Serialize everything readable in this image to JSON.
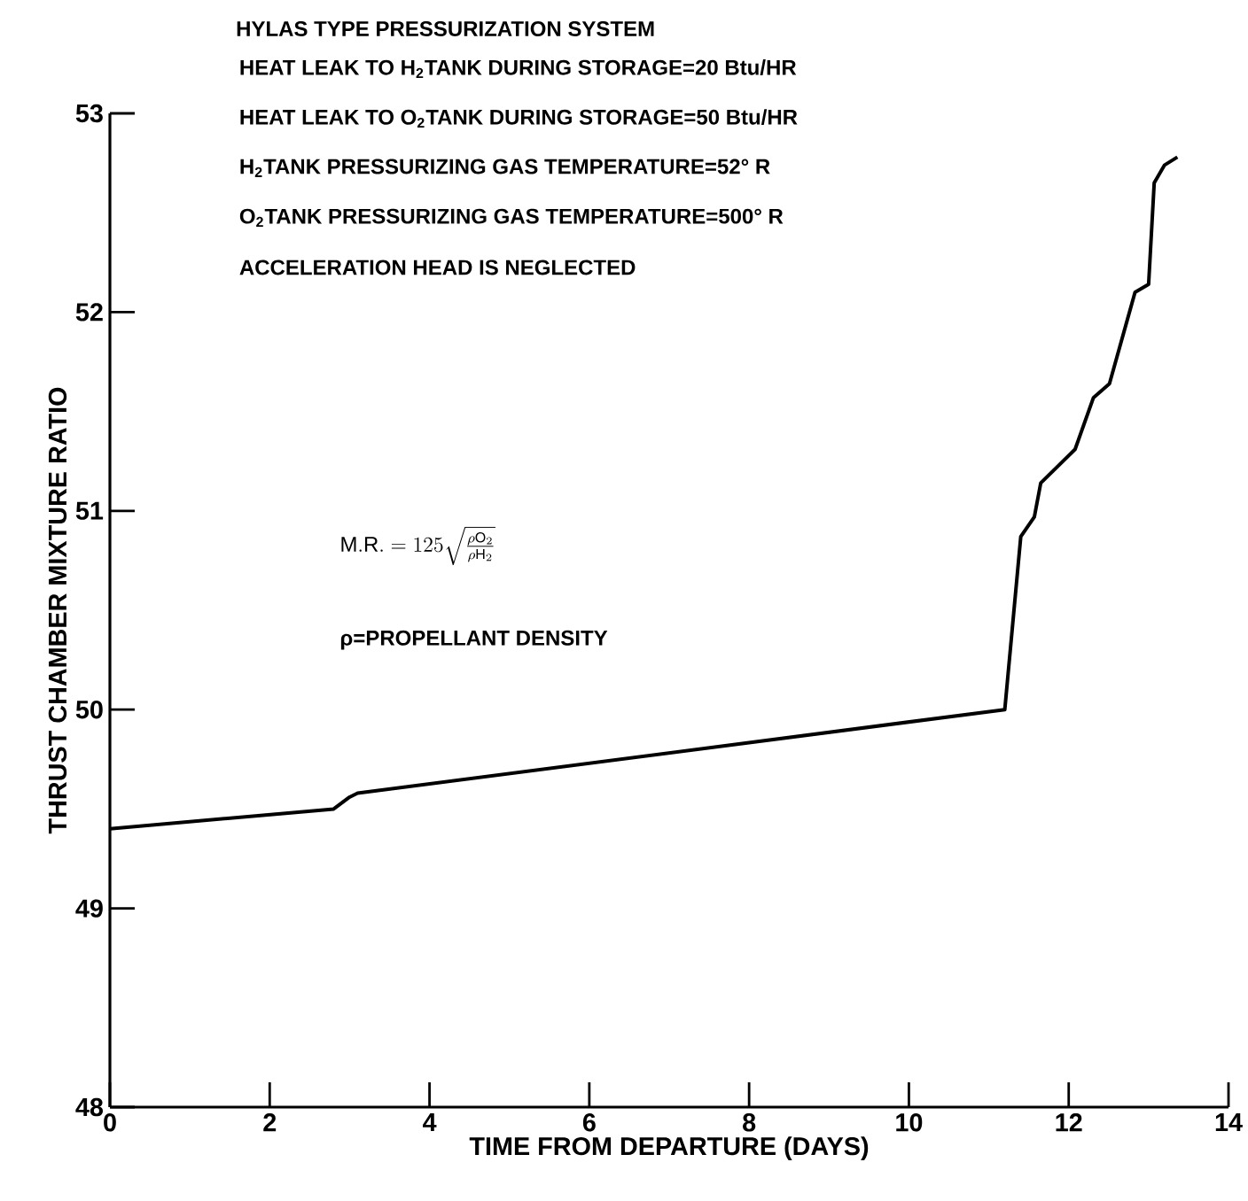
{
  "chart_data": {
    "type": "line",
    "title": "HYLAS TYPE PRESSURIZATION SYSTEM",
    "xlabel": "TIME FROM DEPARTURE (DAYS)",
    "ylabel": "THRUST CHAMBER MIXTURE RATIO",
    "annotations": [
      "HEAT LEAK TO H$_{2}$TANK DURING STORAGE=20 Btu/HR",
      "HEAT LEAK TO O$_{2}$TANK DURING STORAGE=50 Btu/HR",
      "H$_{2}$TANK PRESSURIZING GAS TEMPERATURE=52° R",
      "O$_{2}$TANK PRESSURIZING GAS TEMPERATURE=500° R",
      "ACCELERATION HEAD IS NEGLECTED",
      "\\mathrm{M.R.}=125\\sqrt{\\frac{\\rho\\mathrm{O}_2}{\\rho\\mathrm{H}_2}}",
      "ρ=PROPELLANT DENSITY"
    ],
    "series": [
      {
        "color": "#000000",
        "x": [
          0,
          2.8,
          3.0,
          3.1,
          11.2,
          11.4,
          11.57,
          11.65,
          12.08,
          12.31,
          12.51,
          12.83,
          13.0,
          13.07,
          13.2,
          13.36
        ],
        "values": [
          49.4,
          49.5,
          49.56,
          49.58,
          50.0,
          50.87,
          50.97,
          51.14,
          51.31,
          51.57,
          51.64,
          52.1,
          52.14,
          52.65,
          52.74,
          52.78
        ]
      }
    ],
    "xlim": [
      0,
      14
    ],
    "ylim": [
      48,
      53
    ],
    "xticks": [
      0,
      2,
      4,
      6,
      8,
      10,
      12,
      14
    ],
    "yticks": [
      48,
      49,
      50,
      51,
      52,
      53
    ],
    "grid": false,
    "marker": "none",
    "line_style": "solid"
  }
}
